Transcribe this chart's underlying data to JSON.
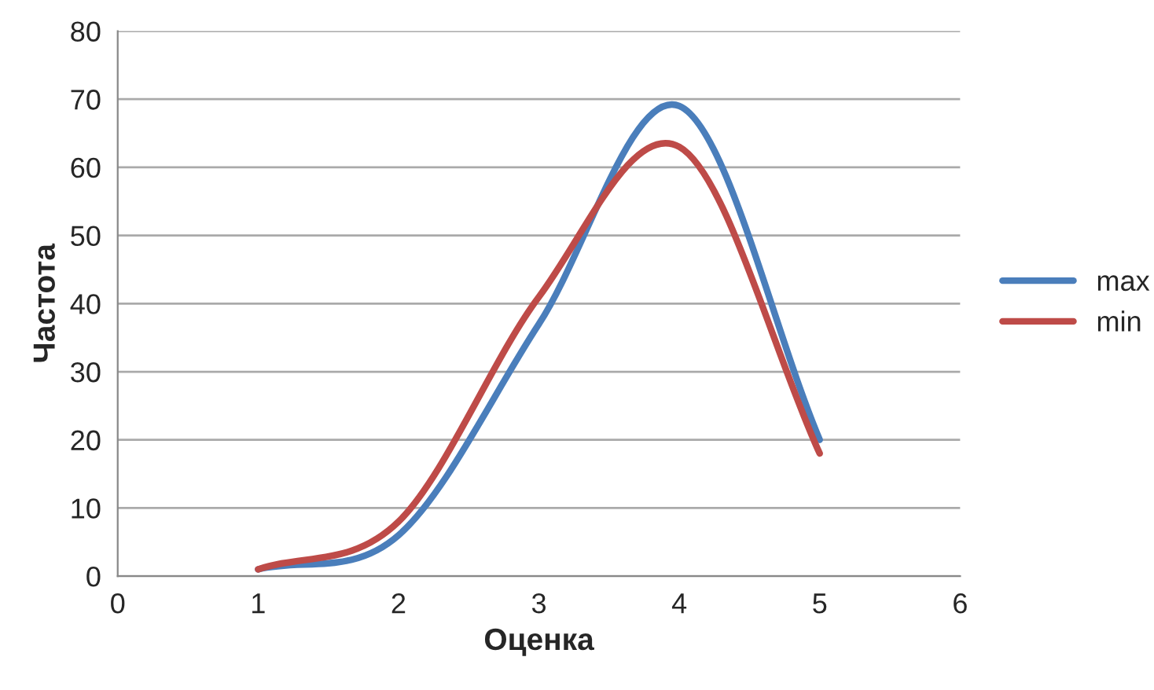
{
  "chart_data": {
    "type": "line",
    "xlabel": "Оценка",
    "ylabel": "Частота",
    "x": [
      1,
      2,
      3,
      4,
      5
    ],
    "series": [
      {
        "name": "max",
        "color": "#4a7ebb",
        "values": [
          1,
          6,
          37,
          69,
          20
        ]
      },
      {
        "name": "min",
        "color": "#be4b48",
        "values": [
          1,
          8,
          41,
          63,
          18
        ]
      }
    ],
    "xlim": [
      0,
      6
    ],
    "xticks": [
      0,
      1,
      2,
      3,
      4,
      5,
      6
    ],
    "ylim": [
      0,
      80
    ],
    "yticks": [
      0,
      10,
      20,
      30,
      40,
      50,
      60,
      70,
      80
    ],
    "grid": "y",
    "legend": "right",
    "marker": "none",
    "line_style": "solid"
  }
}
